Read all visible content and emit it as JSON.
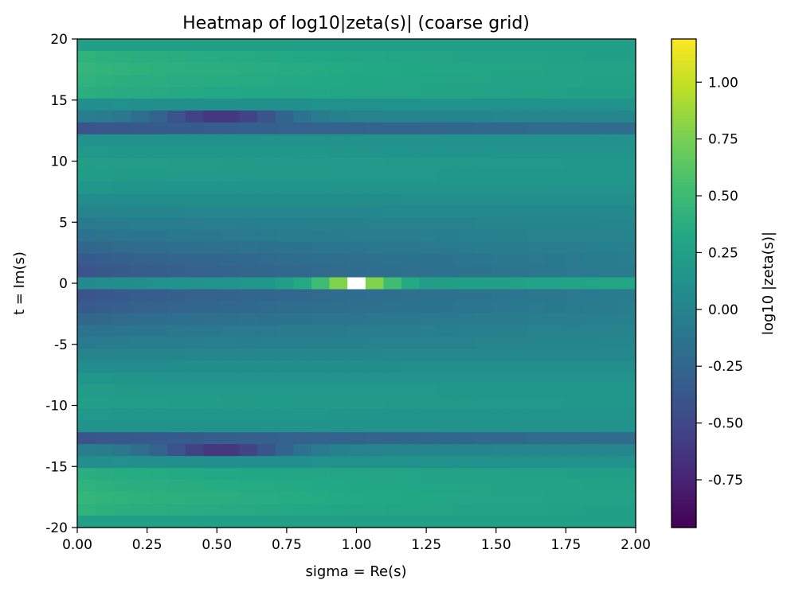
{
  "chart_data": {
    "type": "heatmap",
    "title": "Heatmap of log10|zeta(s)| (coarse grid)",
    "xlabel": "sigma = Re(s)",
    "ylabel": "t = Im(s)",
    "colorbar_label": "log10 |zeta(s)|",
    "colormap": "viridis",
    "xlim": [
      0.0,
      2.0
    ],
    "ylim": [
      -20,
      20
    ],
    "vmin": -0.96,
    "vmax": 1.19,
    "x_ticks": [
      "0.00",
      "0.25",
      "0.50",
      "0.75",
      "1.00",
      "1.25",
      "1.50",
      "1.75",
      "2.00"
    ],
    "y_ticks": [
      "20",
      "15",
      "10",
      "5",
      "0",
      "-5",
      "-10",
      "-15",
      "-20"
    ],
    "colorbar_ticks": [
      "1.00",
      "0.75",
      "0.50",
      "0.25",
      "0.00",
      "-0.25",
      "-0.50",
      "-0.75"
    ],
    "colorbar_tick_values": [
      1.0,
      0.75,
      0.5,
      0.25,
      0.0,
      -0.25,
      -0.5,
      -0.75
    ],
    "grid_size": {
      "sigma_cells": 31,
      "t_cells": 41
    },
    "sigma_values": [
      0.0,
      0.0667,
      0.1333,
      0.2,
      0.2667,
      0.3333,
      0.4,
      0.4667,
      0.5333,
      0.6,
      0.6667,
      0.7333,
      0.8,
      0.8667,
      0.9333,
      1.0,
      1.0667,
      1.1333,
      1.2,
      1.2667,
      1.3333,
      1.4,
      1.4667,
      1.5333,
      1.6,
      1.6667,
      1.7333,
      1.8,
      1.8667,
      1.9333,
      2.0
    ],
    "t_values": [
      20,
      19,
      18,
      17,
      16,
      15,
      14,
      13,
      12,
      11,
      10,
      9,
      8,
      7,
      6,
      5,
      4,
      3,
      2,
      1,
      0,
      -1,
      -2,
      -3,
      -4,
      -5,
      -6,
      -7,
      -8,
      -9,
      -10,
      -11,
      -12,
      -13,
      -14,
      -15,
      -16,
      -17,
      -18,
      -19,
      -20
    ],
    "row_profiles": [
      [
        0.25,
        0.25
      ],
      [
        0.42,
        0.25
      ],
      [
        0.45,
        0.27
      ],
      [
        0.42,
        0.26
      ],
      [
        0.38,
        0.25
      ],
      [
        0.1,
        0.12
      ],
      [
        -0.05,
        0.03
      ],
      [
        -0.4,
        -0.2
      ],
      [
        0.12,
        0.12
      ],
      [
        0.18,
        0.14
      ],
      [
        0.24,
        0.17
      ],
      [
        0.22,
        0.16
      ],
      [
        0.16,
        0.14
      ],
      [
        0.08,
        0.1
      ],
      [
        0.0,
        0.05
      ],
      [
        -0.08,
        0.02
      ],
      [
        -0.15,
        0.0
      ],
      [
        -0.25,
        -0.03
      ],
      [
        -0.35,
        -0.06
      ],
      [
        -0.4,
        -0.07
      ],
      [
        0.05,
        0.3
      ],
      [
        -0.4,
        -0.07
      ],
      [
        -0.35,
        -0.06
      ],
      [
        -0.25,
        -0.03
      ],
      [
        -0.15,
        0.0
      ],
      [
        -0.08,
        0.02
      ],
      [
        0.0,
        0.05
      ],
      [
        0.08,
        0.1
      ],
      [
        0.16,
        0.14
      ],
      [
        0.22,
        0.16
      ],
      [
        0.24,
        0.17
      ],
      [
        0.18,
        0.14
      ],
      [
        0.12,
        0.12
      ],
      [
        -0.4,
        -0.2
      ],
      [
        -0.05,
        0.03
      ],
      [
        0.1,
        0.12
      ],
      [
        0.38,
        0.25
      ],
      [
        0.42,
        0.26
      ],
      [
        0.45,
        0.27
      ],
      [
        0.42,
        0.25
      ],
      [
        0.25,
        0.25
      ]
    ],
    "zero_dips": [
      {
        "t": 14,
        "sigma": 0.5,
        "depth": 0.6,
        "width": 0.25
      },
      {
        "t": -14,
        "sigma": 0.5,
        "depth": 0.6,
        "width": 0.25
      }
    ],
    "pole": {
      "t": 0,
      "sigma": 1.0,
      "peak": 1.18,
      "width": 0.16,
      "saturated_label": "above vmax"
    }
  }
}
